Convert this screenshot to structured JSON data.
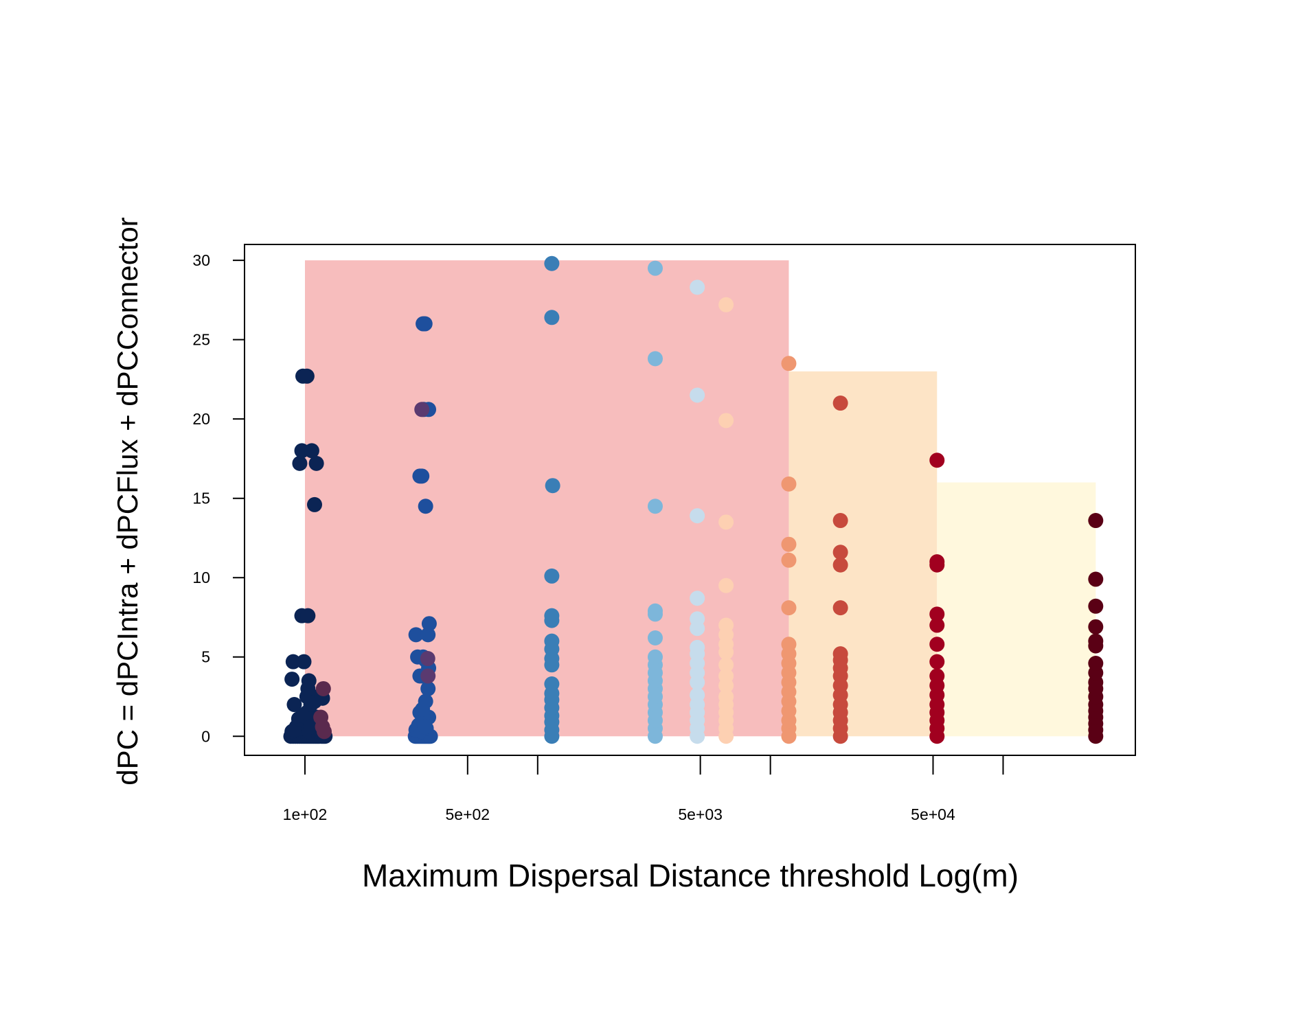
{
  "chart_data": {
    "type": "scatter",
    "title": "",
    "xlabel": "Maximum Dispersal Distance threshold Log(m)",
    "ylabel": "dPC = dPCIntra + dPCFlux + dPCConnector",
    "x_scale": "log",
    "xlim": [
      55,
      370000
    ],
    "ylim": [
      -1.2,
      31
    ],
    "grid": false,
    "legend": "none",
    "x_ticks": [
      {
        "value": 100,
        "label": "1e+02"
      },
      {
        "value": 500,
        "label": "5e+02"
      },
      {
        "value": 1000,
        "label": ""
      },
      {
        "value": 5000,
        "label": "5e+03"
      },
      {
        "value": 10000,
        "label": ""
      },
      {
        "value": 50000,
        "label": "5e+04"
      },
      {
        "value": 100000,
        "label": ""
      }
    ],
    "y_ticks": [
      {
        "value": 0,
        "label": "0"
      },
      {
        "value": 5,
        "label": "5"
      },
      {
        "value": 10,
        "label": "10"
      },
      {
        "value": 15,
        "label": "15"
      },
      {
        "value": 20,
        "label": "20"
      },
      {
        "value": 25,
        "label": "25"
      },
      {
        "value": 30,
        "label": "30"
      }
    ],
    "bands": [
      {
        "x0": 100,
        "x1": 12000,
        "y": 30,
        "color": "#f7bdbd"
      },
      {
        "x0": 12000,
        "x1": 52000,
        "y": 23,
        "color": "#fde4c6"
      },
      {
        "x0": 52000,
        "x1": 250000,
        "y": 16,
        "color": "#fff8dd"
      }
    ],
    "series": [
      {
        "color": "#0b2454",
        "points": [
          [
            87,
            0
          ],
          [
            89,
            0
          ],
          [
            91,
            0
          ],
          [
            93,
            0
          ],
          [
            95,
            0
          ],
          [
            97,
            0
          ],
          [
            99,
            0
          ],
          [
            101,
            0
          ],
          [
            103,
            0
          ],
          [
            105,
            0
          ],
          [
            107,
            0
          ],
          [
            109,
            0
          ],
          [
            111,
            0
          ],
          [
            113,
            0
          ],
          [
            115,
            0
          ],
          [
            118,
            0
          ],
          [
            120,
            0
          ],
          [
            122,
            0
          ],
          [
            88,
            0.3
          ],
          [
            92,
            0.6
          ],
          [
            96,
            0.5
          ],
          [
            100,
            0.8
          ],
          [
            104,
            1.0
          ],
          [
            108,
            0.9
          ],
          [
            112,
            1.2
          ],
          [
            116,
            0.7
          ],
          [
            90,
            0.4
          ],
          [
            94,
            1.1
          ],
          [
            98,
            1.3
          ],
          [
            102,
            1.5
          ],
          [
            106,
            0.6
          ],
          [
            106,
            2.0
          ],
          [
            110,
            2.2
          ],
          [
            114,
            2.5
          ],
          [
            119,
            2.4
          ],
          [
            90,
            2.0
          ],
          [
            102,
            2.5
          ],
          [
            103,
            3.0
          ],
          [
            104,
            3.5
          ],
          [
            88,
            3.6
          ],
          [
            89,
            4.7
          ],
          [
            99,
            4.7
          ],
          [
            97,
            7.6
          ],
          [
            103,
            7.6
          ],
          [
            110,
            14.6
          ],
          [
            112,
            17.2
          ],
          [
            95,
            17.2
          ],
          [
            97,
            18.0
          ],
          [
            107,
            18.0
          ],
          [
            98,
            22.7
          ],
          [
            102,
            22.7
          ]
        ]
      },
      {
        "color": "#5a2a4e",
        "points": [
          [
            120,
            3.0
          ],
          [
            117,
            1.2
          ],
          [
            119,
            0.6
          ],
          [
            121,
            0.3
          ]
        ]
      },
      {
        "color": "#1e4f9d",
        "points": [
          [
            298,
            0
          ],
          [
            302,
            0
          ],
          [
            306,
            0
          ],
          [
            310,
            0
          ],
          [
            314,
            0
          ],
          [
            318,
            0
          ],
          [
            322,
            0
          ],
          [
            326,
            0
          ],
          [
            330,
            0
          ],
          [
            334,
            0
          ],
          [
            338,
            0
          ],
          [
            342,
            0
          ],
          [
            346,
            0
          ],
          [
            300,
            0.4
          ],
          [
            308,
            0.7
          ],
          [
            316,
            0.3
          ],
          [
            324,
            0.9
          ],
          [
            332,
            0.5
          ],
          [
            340,
            1.2
          ],
          [
            312,
            1.5
          ],
          [
            320,
            1.2
          ],
          [
            328,
            0.6
          ],
          [
            320,
            1.7
          ],
          [
            330,
            2.2
          ],
          [
            338,
            3.0
          ],
          [
            312,
            3.8
          ],
          [
            320,
            3.8
          ],
          [
            340,
            4.3
          ],
          [
            330,
            4.8
          ],
          [
            305,
            5.0
          ],
          [
            322,
            5.0
          ],
          [
            300,
            6.4
          ],
          [
            338,
            6.4
          ],
          [
            342,
            7.1
          ],
          [
            330,
            14.5
          ],
          [
            312,
            16.4
          ],
          [
            318,
            16.4
          ],
          [
            324,
            20.6
          ],
          [
            340,
            20.6
          ],
          [
            322,
            26.0
          ],
          [
            328,
            26.0
          ]
        ]
      },
      {
        "color": "#5a3a70",
        "points": [
          [
            338,
            3.8
          ],
          [
            318,
            20.6
          ],
          [
            337,
            4.9
          ]
        ]
      },
      {
        "color": "#3a7eb6",
        "points": [
          [
            1150,
            0
          ],
          [
            1150,
            0.4
          ],
          [
            1150,
            0.9
          ],
          [
            1150,
            1.3
          ],
          [
            1150,
            1.8
          ],
          [
            1150,
            2.3
          ],
          [
            1150,
            2.7
          ],
          [
            1150,
            3.3
          ],
          [
            1150,
            4.5
          ],
          [
            1150,
            4.9
          ],
          [
            1150,
            5.5
          ],
          [
            1150,
            6.0
          ],
          [
            1150,
            7.3
          ],
          [
            1150,
            7.6
          ],
          [
            1150,
            10.1
          ],
          [
            1160,
            15.8
          ],
          [
            1150,
            26.4
          ],
          [
            1150,
            29.8
          ]
        ]
      },
      {
        "color": "#7db6da",
        "points": [
          [
            3200,
            0
          ],
          [
            3200,
            0.5
          ],
          [
            3200,
            1.0
          ],
          [
            3200,
            1.5
          ],
          [
            3200,
            2.0
          ],
          [
            3200,
            2.5
          ],
          [
            3200,
            3.0
          ],
          [
            3200,
            3.5
          ],
          [
            3200,
            4.0
          ],
          [
            3200,
            4.5
          ],
          [
            3200,
            5.0
          ],
          [
            3200,
            6.2
          ],
          [
            3200,
            7.7
          ],
          [
            3200,
            7.9
          ],
          [
            3200,
            14.5
          ],
          [
            3200,
            23.8
          ],
          [
            3200,
            29.5
          ]
        ]
      },
      {
        "color": "#c6dcec",
        "points": [
          [
            4850,
            0
          ],
          [
            4850,
            0.5
          ],
          [
            4850,
            1.0
          ],
          [
            4850,
            1.5
          ],
          [
            4850,
            2.0
          ],
          [
            4850,
            2.6
          ],
          [
            4850,
            3.4
          ],
          [
            4850,
            4.0
          ],
          [
            4850,
            4.6
          ],
          [
            4850,
            5.2
          ],
          [
            4850,
            5.6
          ],
          [
            4850,
            6.8
          ],
          [
            4850,
            7.4
          ],
          [
            4850,
            8.7
          ],
          [
            4850,
            13.9
          ],
          [
            4850,
            21.5
          ],
          [
            4850,
            28.3
          ]
        ]
      },
      {
        "color": "#fdd0b2",
        "points": [
          [
            6450,
            0
          ],
          [
            6450,
            0.5
          ],
          [
            6450,
            1.0
          ],
          [
            6450,
            1.5
          ],
          [
            6450,
            2.0
          ],
          [
            6450,
            2.5
          ],
          [
            6450,
            3.2
          ],
          [
            6450,
            3.8
          ],
          [
            6450,
            4.5
          ],
          [
            6450,
            5.3
          ],
          [
            6450,
            5.8
          ],
          [
            6450,
            6.4
          ],
          [
            6450,
            7.0
          ],
          [
            6450,
            9.5
          ],
          [
            6450,
            13.5
          ],
          [
            6450,
            19.9
          ],
          [
            6450,
            27.2
          ]
        ]
      },
      {
        "color": "#ef9771",
        "points": [
          [
            12000,
            0
          ],
          [
            12000,
            0.5
          ],
          [
            12000,
            1.0
          ],
          [
            12000,
            1.6
          ],
          [
            12000,
            2.2
          ],
          [
            12000,
            2.8
          ],
          [
            12000,
            3.4
          ],
          [
            12000,
            4.0
          ],
          [
            12000,
            4.6
          ],
          [
            12000,
            5.2
          ],
          [
            12000,
            5.8
          ],
          [
            12000,
            8.1
          ],
          [
            12000,
            11.1
          ],
          [
            12000,
            12.1
          ],
          [
            12000,
            15.9
          ],
          [
            12000,
            23.5
          ]
        ]
      },
      {
        "color": "#c74a3d",
        "points": [
          [
            20000,
            0
          ],
          [
            20000,
            0.5
          ],
          [
            20000,
            1.0
          ],
          [
            20000,
            1.5
          ],
          [
            20000,
            2.0
          ],
          [
            20000,
            2.6
          ],
          [
            20000,
            3.2
          ],
          [
            20000,
            3.8
          ],
          [
            20000,
            4.3
          ],
          [
            20000,
            4.8
          ],
          [
            20000,
            5.2
          ],
          [
            20000,
            8.1
          ],
          [
            20000,
            10.8
          ],
          [
            20000,
            11.6
          ],
          [
            20000,
            13.6
          ],
          [
            20000,
            21.0
          ]
        ]
      },
      {
        "color": "#a1001f",
        "points": [
          [
            52000,
            0
          ],
          [
            52000,
            0.5
          ],
          [
            52000,
            1.0
          ],
          [
            52000,
            1.5
          ],
          [
            52000,
            2.0
          ],
          [
            52000,
            2.6
          ],
          [
            52000,
            3.2
          ],
          [
            52000,
            3.8
          ],
          [
            52000,
            4.7
          ],
          [
            52000,
            5.8
          ],
          [
            52000,
            7.0
          ],
          [
            52000,
            7.7
          ],
          [
            52000,
            10.8
          ],
          [
            52000,
            11.0
          ],
          [
            52000,
            17.4
          ]
        ]
      },
      {
        "color": "#5a0015",
        "points": [
          [
            250000,
            0
          ],
          [
            250000,
            0.4
          ],
          [
            250000,
            0.8
          ],
          [
            250000,
            1.2
          ],
          [
            250000,
            1.6
          ],
          [
            250000,
            2.0
          ],
          [
            250000,
            2.5
          ],
          [
            250000,
            3.0
          ],
          [
            250000,
            3.4
          ],
          [
            250000,
            4.0
          ],
          [
            250000,
            4.6
          ],
          [
            250000,
            5.7
          ],
          [
            250000,
            6.0
          ],
          [
            250000,
            6.9
          ],
          [
            250000,
            8.2
          ],
          [
            250000,
            9.9
          ],
          [
            250000,
            13.6
          ]
        ]
      }
    ]
  }
}
